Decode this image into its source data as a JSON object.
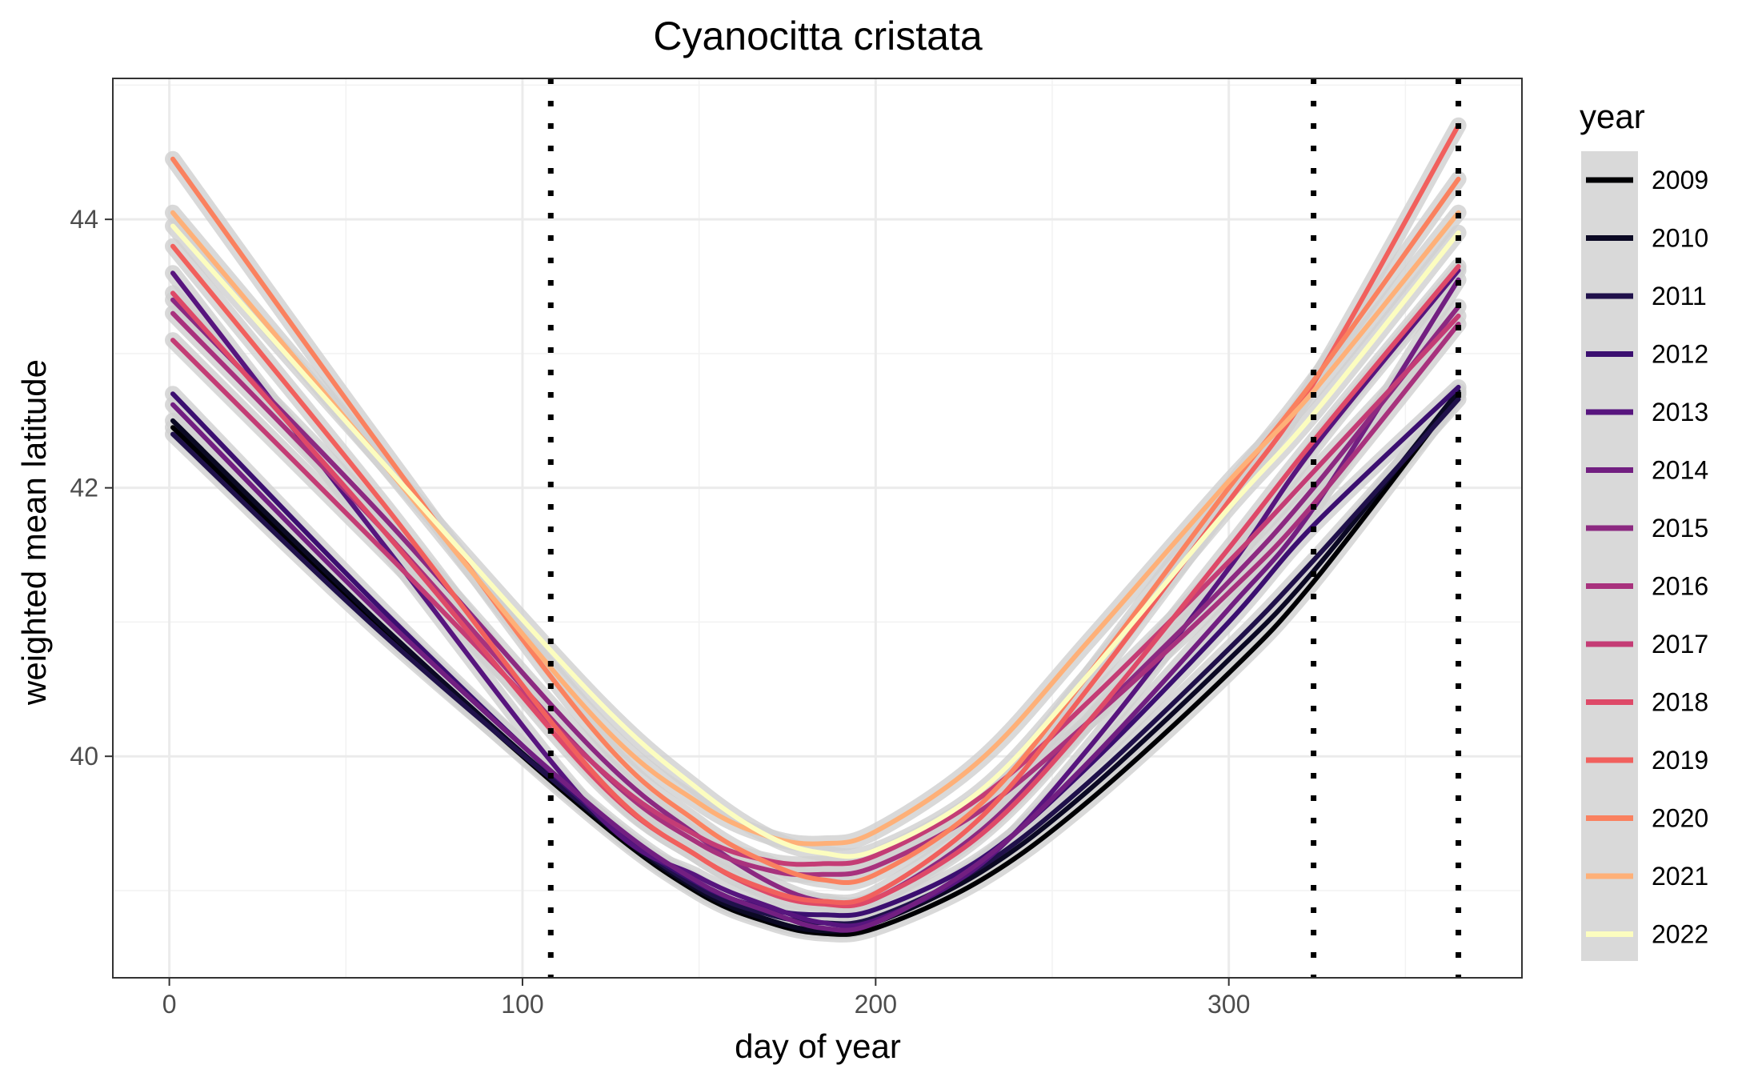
{
  "chart_data": {
    "type": "line",
    "title": "Cyanocitta cristata",
    "xlabel": "day of year",
    "ylabel": "weighted mean latitude",
    "xlim": [
      -16,
      383
    ],
    "ylim": [
      38.35,
      45.05
    ],
    "x_ticks": [
      0,
      100,
      200,
      300
    ],
    "y_ticks": [
      40,
      42,
      44
    ],
    "grid": true,
    "legend_title": "year",
    "legend_position": "right",
    "vlines": [
      108,
      324,
      365
    ],
    "x": [
      1,
      60,
      120,
      150,
      170,
      185,
      200,
      230,
      260,
      300,
      324,
      365
    ],
    "series": [
      {
        "name": "2009",
        "color": "#000004",
        "values": [
          42.45,
          40.95,
          39.55,
          38.98,
          38.76,
          38.68,
          38.72,
          39.08,
          39.66,
          40.62,
          41.3,
          42.7
        ]
      },
      {
        "name": "2010",
        "color": "#0b0924",
        "values": [
          42.5,
          40.98,
          39.57,
          39.0,
          38.78,
          38.7,
          38.76,
          39.14,
          39.74,
          40.72,
          41.38,
          42.72
        ]
      },
      {
        "name": "2011",
        "color": "#20114b",
        "values": [
          42.4,
          40.92,
          39.58,
          39.02,
          38.82,
          38.76,
          38.8,
          39.18,
          39.8,
          40.8,
          41.46,
          42.66
        ]
      },
      {
        "name": "2012",
        "color": "#3b0f70",
        "values": [
          42.7,
          41.1,
          39.6,
          39.05,
          38.86,
          38.82,
          38.86,
          39.24,
          39.92,
          41.0,
          41.72,
          42.75
        ]
      },
      {
        "name": "2013",
        "color": "#57157e",
        "values": [
          43.6,
          41.6,
          39.6,
          39.1,
          38.88,
          38.76,
          38.78,
          39.2,
          40.05,
          41.4,
          42.3,
          43.62
        ]
      },
      {
        "name": "2014",
        "color": "#721f81",
        "values": [
          42.62,
          41.05,
          39.62,
          39.06,
          38.84,
          38.72,
          38.76,
          39.22,
          39.95,
          41.1,
          41.85,
          43.55
        ]
      },
      {
        "name": "2015",
        "color": "#8c2981",
        "values": [
          43.4,
          41.8,
          40.05,
          39.4,
          39.06,
          38.92,
          38.94,
          39.45,
          40.25,
          41.3,
          42.0,
          43.35
        ]
      },
      {
        "name": "2016",
        "color": "#a8327d",
        "values": [
          43.3,
          41.7,
          39.95,
          39.35,
          39.15,
          39.12,
          39.18,
          39.6,
          40.25,
          41.22,
          41.88,
          43.22
        ]
      },
      {
        "name": "2017",
        "color": "#c43c75",
        "values": [
          43.1,
          41.55,
          39.95,
          39.4,
          39.22,
          39.2,
          39.26,
          39.7,
          40.4,
          41.45,
          42.12,
          43.28
        ]
      },
      {
        "name": "2018",
        "color": "#de4968",
        "values": [
          43.45,
          41.7,
          39.85,
          39.25,
          38.98,
          38.9,
          38.94,
          39.42,
          40.25,
          41.55,
          42.35,
          43.65
        ]
      },
      {
        "name": "2019",
        "color": "#f1605d",
        "values": [
          43.8,
          41.9,
          39.88,
          39.25,
          39.0,
          38.92,
          38.98,
          39.55,
          40.5,
          41.9,
          42.78,
          44.7
        ]
      },
      {
        "name": "2020",
        "color": "#fa815f",
        "values": [
          44.45,
          42.3,
          40.2,
          39.5,
          39.2,
          39.08,
          39.12,
          39.65,
          40.6,
          42.0,
          42.8,
          44.3
        ]
      },
      {
        "name": "2021",
        "color": "#feb078",
        "values": [
          44.05,
          42.2,
          40.3,
          39.65,
          39.4,
          39.35,
          39.44,
          39.98,
          40.85,
          42.05,
          42.72,
          44.05
        ]
      },
      {
        "name": "2022",
        "color": "#fcfdbf",
        "values": [
          43.95,
          42.2,
          40.45,
          39.75,
          39.4,
          39.28,
          39.3,
          39.75,
          40.6,
          41.85,
          42.55,
          43.9
        ]
      }
    ]
  }
}
